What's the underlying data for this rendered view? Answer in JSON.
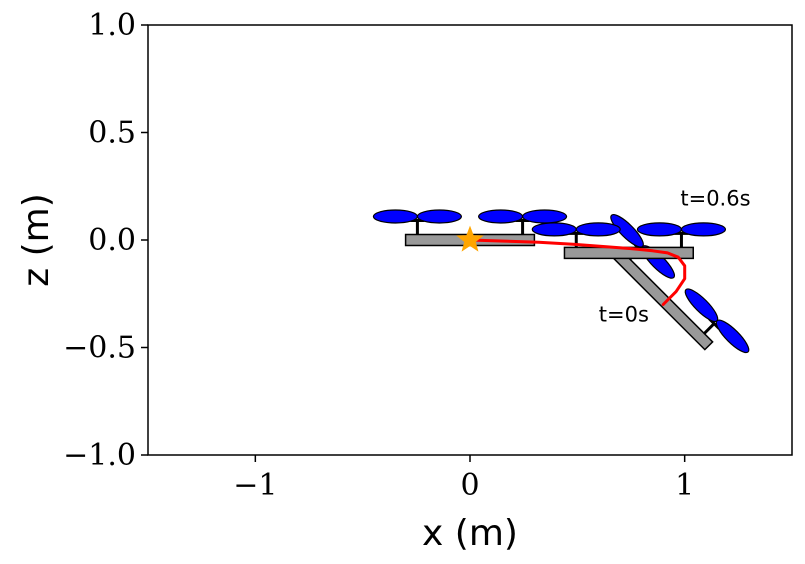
{
  "chart_data": {
    "type": "line",
    "xlabel": "x (m)",
    "ylabel": "z (m)",
    "xlim": [
      -1.5,
      1.5
    ],
    "ylim": [
      -1.0,
      1.0
    ],
    "xticks": [
      -1,
      0,
      1
    ],
    "xtick_labels": [
      "−1",
      "0",
      "1"
    ],
    "yticks": [
      1.0,
      0.5,
      0.0,
      -0.5,
      -1.0
    ],
    "ytick_labels": [
      "1.0",
      "0.5",
      "0.0",
      "−0.5",
      "−1.0"
    ],
    "grid": false,
    "series": [
      {
        "color": "#ff0000",
        "x": [
          0.9,
          0.96,
          1.0,
          1.0,
          0.97,
          0.92,
          0.85,
          0.75,
          0.62,
          0.48,
          0.32,
          0.16,
          0.0
        ],
        "z": [
          -0.3,
          -0.24,
          -0.18,
          -0.12,
          -0.08,
          -0.06,
          -0.05,
          -0.04,
          -0.03,
          -0.02,
          -0.01,
          -0.005,
          0.0
        ]
      }
    ],
    "target": {
      "x": 0.0,
      "z": 0.0,
      "marker": "star",
      "color": "#ffa500"
    },
    "quadrotor_frames": [
      {
        "x": 0.9,
        "z": -0.28,
        "angle_deg": 45
      },
      {
        "x": 0.74,
        "z": -0.06,
        "angle_deg": 0
      },
      {
        "x": 0.0,
        "z": 0.0,
        "angle_deg": 0
      }
    ],
    "annotations": [
      {
        "text": "t=0s",
        "x": 0.6,
        "z": -0.38
      },
      {
        "text": "t=0.6s",
        "x": 0.98,
        "z": 0.16
      }
    ],
    "body_color": "#999999",
    "propeller_color": "#0000ff"
  }
}
